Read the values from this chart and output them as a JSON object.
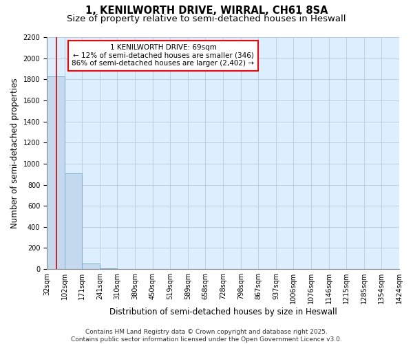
{
  "title_line1": "1, KENILWORTH DRIVE, WIRRAL, CH61 8SA",
  "title_line2": "Size of property relative to semi-detached houses in Heswall",
  "xlabel": "Distribution of semi-detached houses by size in Heswall",
  "ylabel": "Number of semi-detached properties",
  "bar_color": "#c5d9ee",
  "bar_edge_color": "#7aafd4",
  "grid_color": "#b8d0e8",
  "background_color": "#ddeeff",
  "annotation_text": "1 KENILWORTH DRIVE: 69sqm\n← 12% of semi-detached houses are smaller (346)\n86% of semi-detached houses are larger (2,402) →",
  "vline_x": 69,
  "vline_color": "#cc0000",
  "bins": [
    32,
    102,
    171,
    241,
    310,
    380,
    450,
    519,
    589,
    658,
    728,
    798,
    867,
    937,
    1006,
    1076,
    1146,
    1215,
    1285,
    1354,
    1424
  ],
  "bar_heights": [
    1830,
    910,
    55,
    10,
    0,
    0,
    0,
    0,
    0,
    0,
    0,
    0,
    0,
    0,
    0,
    0,
    0,
    0,
    0,
    0
  ],
  "ylim": [
    0,
    2200
  ],
  "yticks": [
    0,
    200,
    400,
    600,
    800,
    1000,
    1200,
    1400,
    1600,
    1800,
    2000,
    2200
  ],
  "tick_labels": [
    "32sqm",
    "102sqm",
    "171sqm",
    "241sqm",
    "310sqm",
    "380sqm",
    "450sqm",
    "519sqm",
    "589sqm",
    "658sqm",
    "728sqm",
    "798sqm",
    "867sqm",
    "937sqm",
    "1006sqm",
    "1076sqm",
    "1146sqm",
    "1215sqm",
    "1285sqm",
    "1354sqm",
    "1424sqm"
  ],
  "footnote": "Contains HM Land Registry data © Crown copyright and database right 2025.\nContains public sector information licensed under the Open Government Licence v3.0.",
  "title_fontsize": 10.5,
  "subtitle_fontsize": 9.5,
  "axis_label_fontsize": 8.5,
  "tick_fontsize": 7,
  "annotation_fontsize": 7.5,
  "footnote_fontsize": 6.5
}
